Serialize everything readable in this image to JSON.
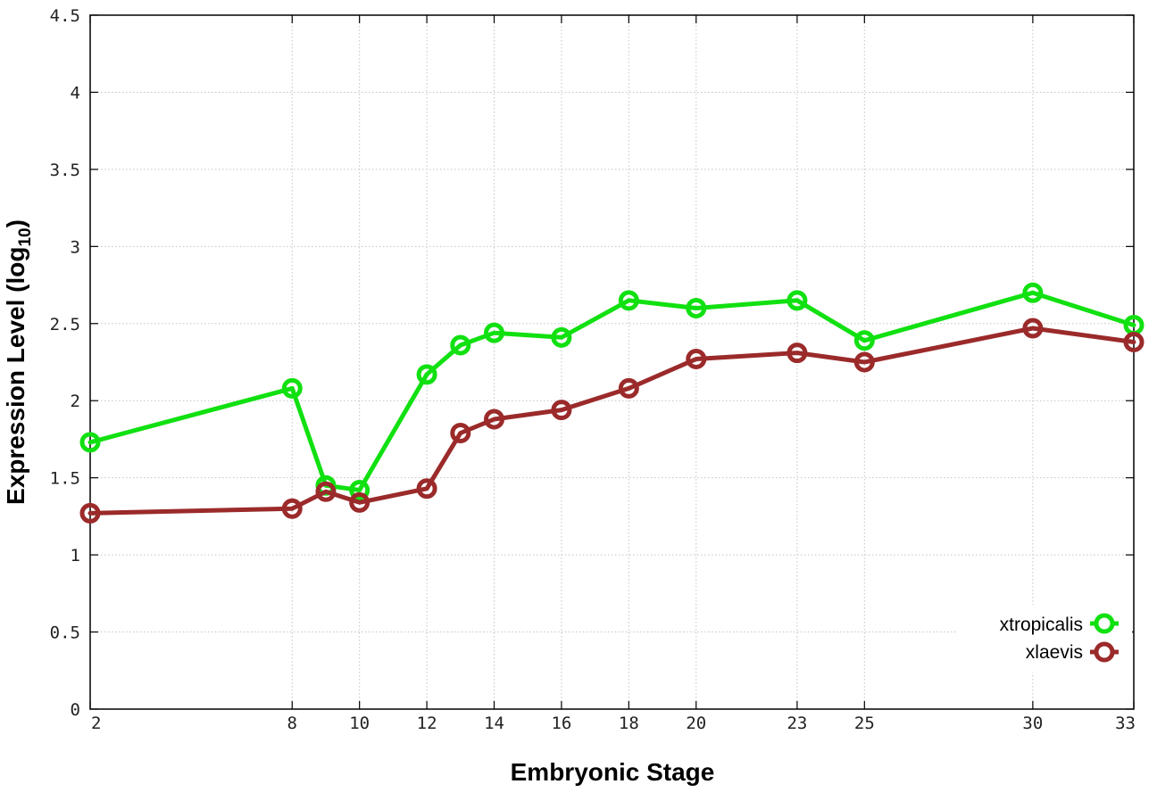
{
  "chart_data": {
    "type": "line",
    "title": "",
    "xlabel": "Embryonic Stage",
    "ylabel": "Expression Level (log",
    "ylabel_subscript": "10",
    "ylabel_suffix": ")",
    "x_ticks": [
      2,
      8,
      10,
      12,
      14,
      16,
      18,
      20,
      23,
      25,
      30,
      33
    ],
    "y_ticks": [
      "0",
      "0.5",
      "1",
      "1.5",
      "2",
      "2.5",
      "3",
      "3.5",
      "4",
      "4.5"
    ],
    "xlim": [
      2,
      33
    ],
    "ylim": [
      0,
      4.5
    ],
    "grid": true,
    "legend_position": "bottom-right",
    "x": [
      2,
      8,
      9,
      10,
      12,
      13,
      14,
      16,
      18,
      20,
      23,
      25,
      30,
      33
    ],
    "series": [
      {
        "name": "xtropicalis",
        "color": "#11e011",
        "values": [
          1.73,
          2.08,
          1.45,
          1.42,
          2.17,
          2.36,
          2.44,
          2.41,
          2.65,
          2.6,
          2.65,
          2.39,
          2.7,
          2.49
        ]
      },
      {
        "name": "xlaevis",
        "color": "#9b2a2a",
        "values": [
          1.27,
          1.3,
          1.41,
          1.34,
          1.43,
          1.79,
          1.88,
          1.94,
          2.08,
          2.27,
          2.31,
          2.25,
          2.47,
          2.38
        ]
      }
    ]
  }
}
